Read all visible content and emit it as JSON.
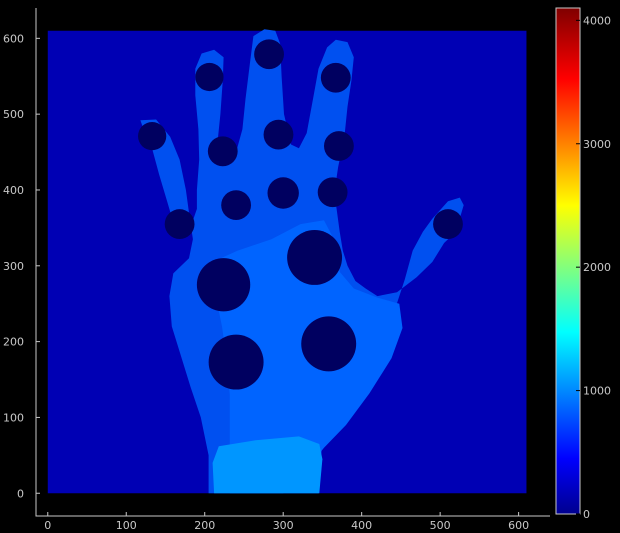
{
  "chart_data": {
    "type": "heatmap",
    "title": "",
    "xlabel": "",
    "ylabel": "",
    "xlim": [
      -15,
      640
    ],
    "ylim": [
      -30,
      640
    ],
    "x_ticks": [
      "0",
      "100",
      "200",
      "300",
      "400",
      "500",
      "600"
    ],
    "y_ticks": [
      "0",
      "100",
      "200",
      "300",
      "400",
      "500",
      "600"
    ],
    "colorbar": {
      "colormap": "jet",
      "range": [
        0,
        4100
      ],
      "ticks": [
        "0",
        "1000",
        "2000",
        "3000",
        "4000"
      ]
    },
    "field_extent": {
      "x": [
        0,
        610
      ],
      "y": [
        0,
        610
      ]
    },
    "background": {
      "value": 200,
      "color": "#0000b4"
    },
    "regions": [
      {
        "name": "hand",
        "value": 880,
        "color": "#0050f0"
      },
      {
        "name": "palm",
        "value": 780,
        "color": "#0064ff"
      },
      {
        "name": "wrist",
        "value": 1010,
        "color": "#0096ff"
      }
    ],
    "spots": {
      "value": 60,
      "color": "#000060",
      "items": [
        {
          "x": 133,
          "y": 471,
          "r": 18
        },
        {
          "x": 206,
          "y": 549,
          "r": 18
        },
        {
          "x": 282,
          "y": 579,
          "r": 19
        },
        {
          "x": 367,
          "y": 548,
          "r": 19
        },
        {
          "x": 223,
          "y": 451,
          "r": 19
        },
        {
          "x": 294,
          "y": 473,
          "r": 19
        },
        {
          "x": 371,
          "y": 458,
          "r": 19
        },
        {
          "x": 168,
          "y": 355,
          "r": 19
        },
        {
          "x": 240,
          "y": 380,
          "r": 19
        },
        {
          "x": 300,
          "y": 396,
          "r": 20
        },
        {
          "x": 363,
          "y": 397,
          "r": 19
        },
        {
          "x": 510,
          "y": 355,
          "r": 19
        },
        {
          "x": 224,
          "y": 275,
          "r": 34
        },
        {
          "x": 340,
          "y": 311,
          "r": 35
        },
        {
          "x": 240,
          "y": 173,
          "r": 35
        },
        {
          "x": 358,
          "y": 197,
          "r": 35
        }
      ]
    }
  }
}
